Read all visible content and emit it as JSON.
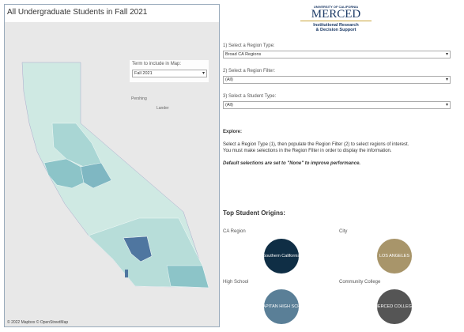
{
  "map": {
    "title": "All Undergraduate Students in Fall 2021",
    "term_label": "Term to include in Map:",
    "term_value": "Fall 2021",
    "labels": [
      "Pershing",
      "Lander"
    ],
    "attribution": "© 2022 Mapbox © OpenStreetMap"
  },
  "logo": {
    "university": "UNIVERSITY OF CALIFORNIA",
    "name": "MERCED",
    "dept_line1": "Institutional Research",
    "dept_line2": "& Decision Support"
  },
  "filters": [
    {
      "label": "1) Select a Region Type:",
      "value": "Broad CA Regions"
    },
    {
      "label": "2) Select a Region Filter:",
      "value": "(All)"
    },
    {
      "label": "3) Select a Student Type:",
      "value": "(All)"
    }
  ],
  "explore": {
    "heading": "Explore:",
    "line1": "Select a Region Type (1), then populate the Region Filter (2) to select regions of interest.",
    "line2": "You must make selections in the Region Filter in order to display the information.",
    "note": "Default selections are set to \"None\" to improve performance."
  },
  "origins": {
    "heading": "Top Student Origins:",
    "items": [
      {
        "label": "CA Region",
        "value": "Southern California"
      },
      {
        "label": "City",
        "value": "LOS ANGELES"
      },
      {
        "label": "High School",
        "value": "EL CAPITAN HIGH SCHOOL"
      },
      {
        "label": "Community College",
        "value": "MERCED COLLEGE"
      }
    ]
  }
}
